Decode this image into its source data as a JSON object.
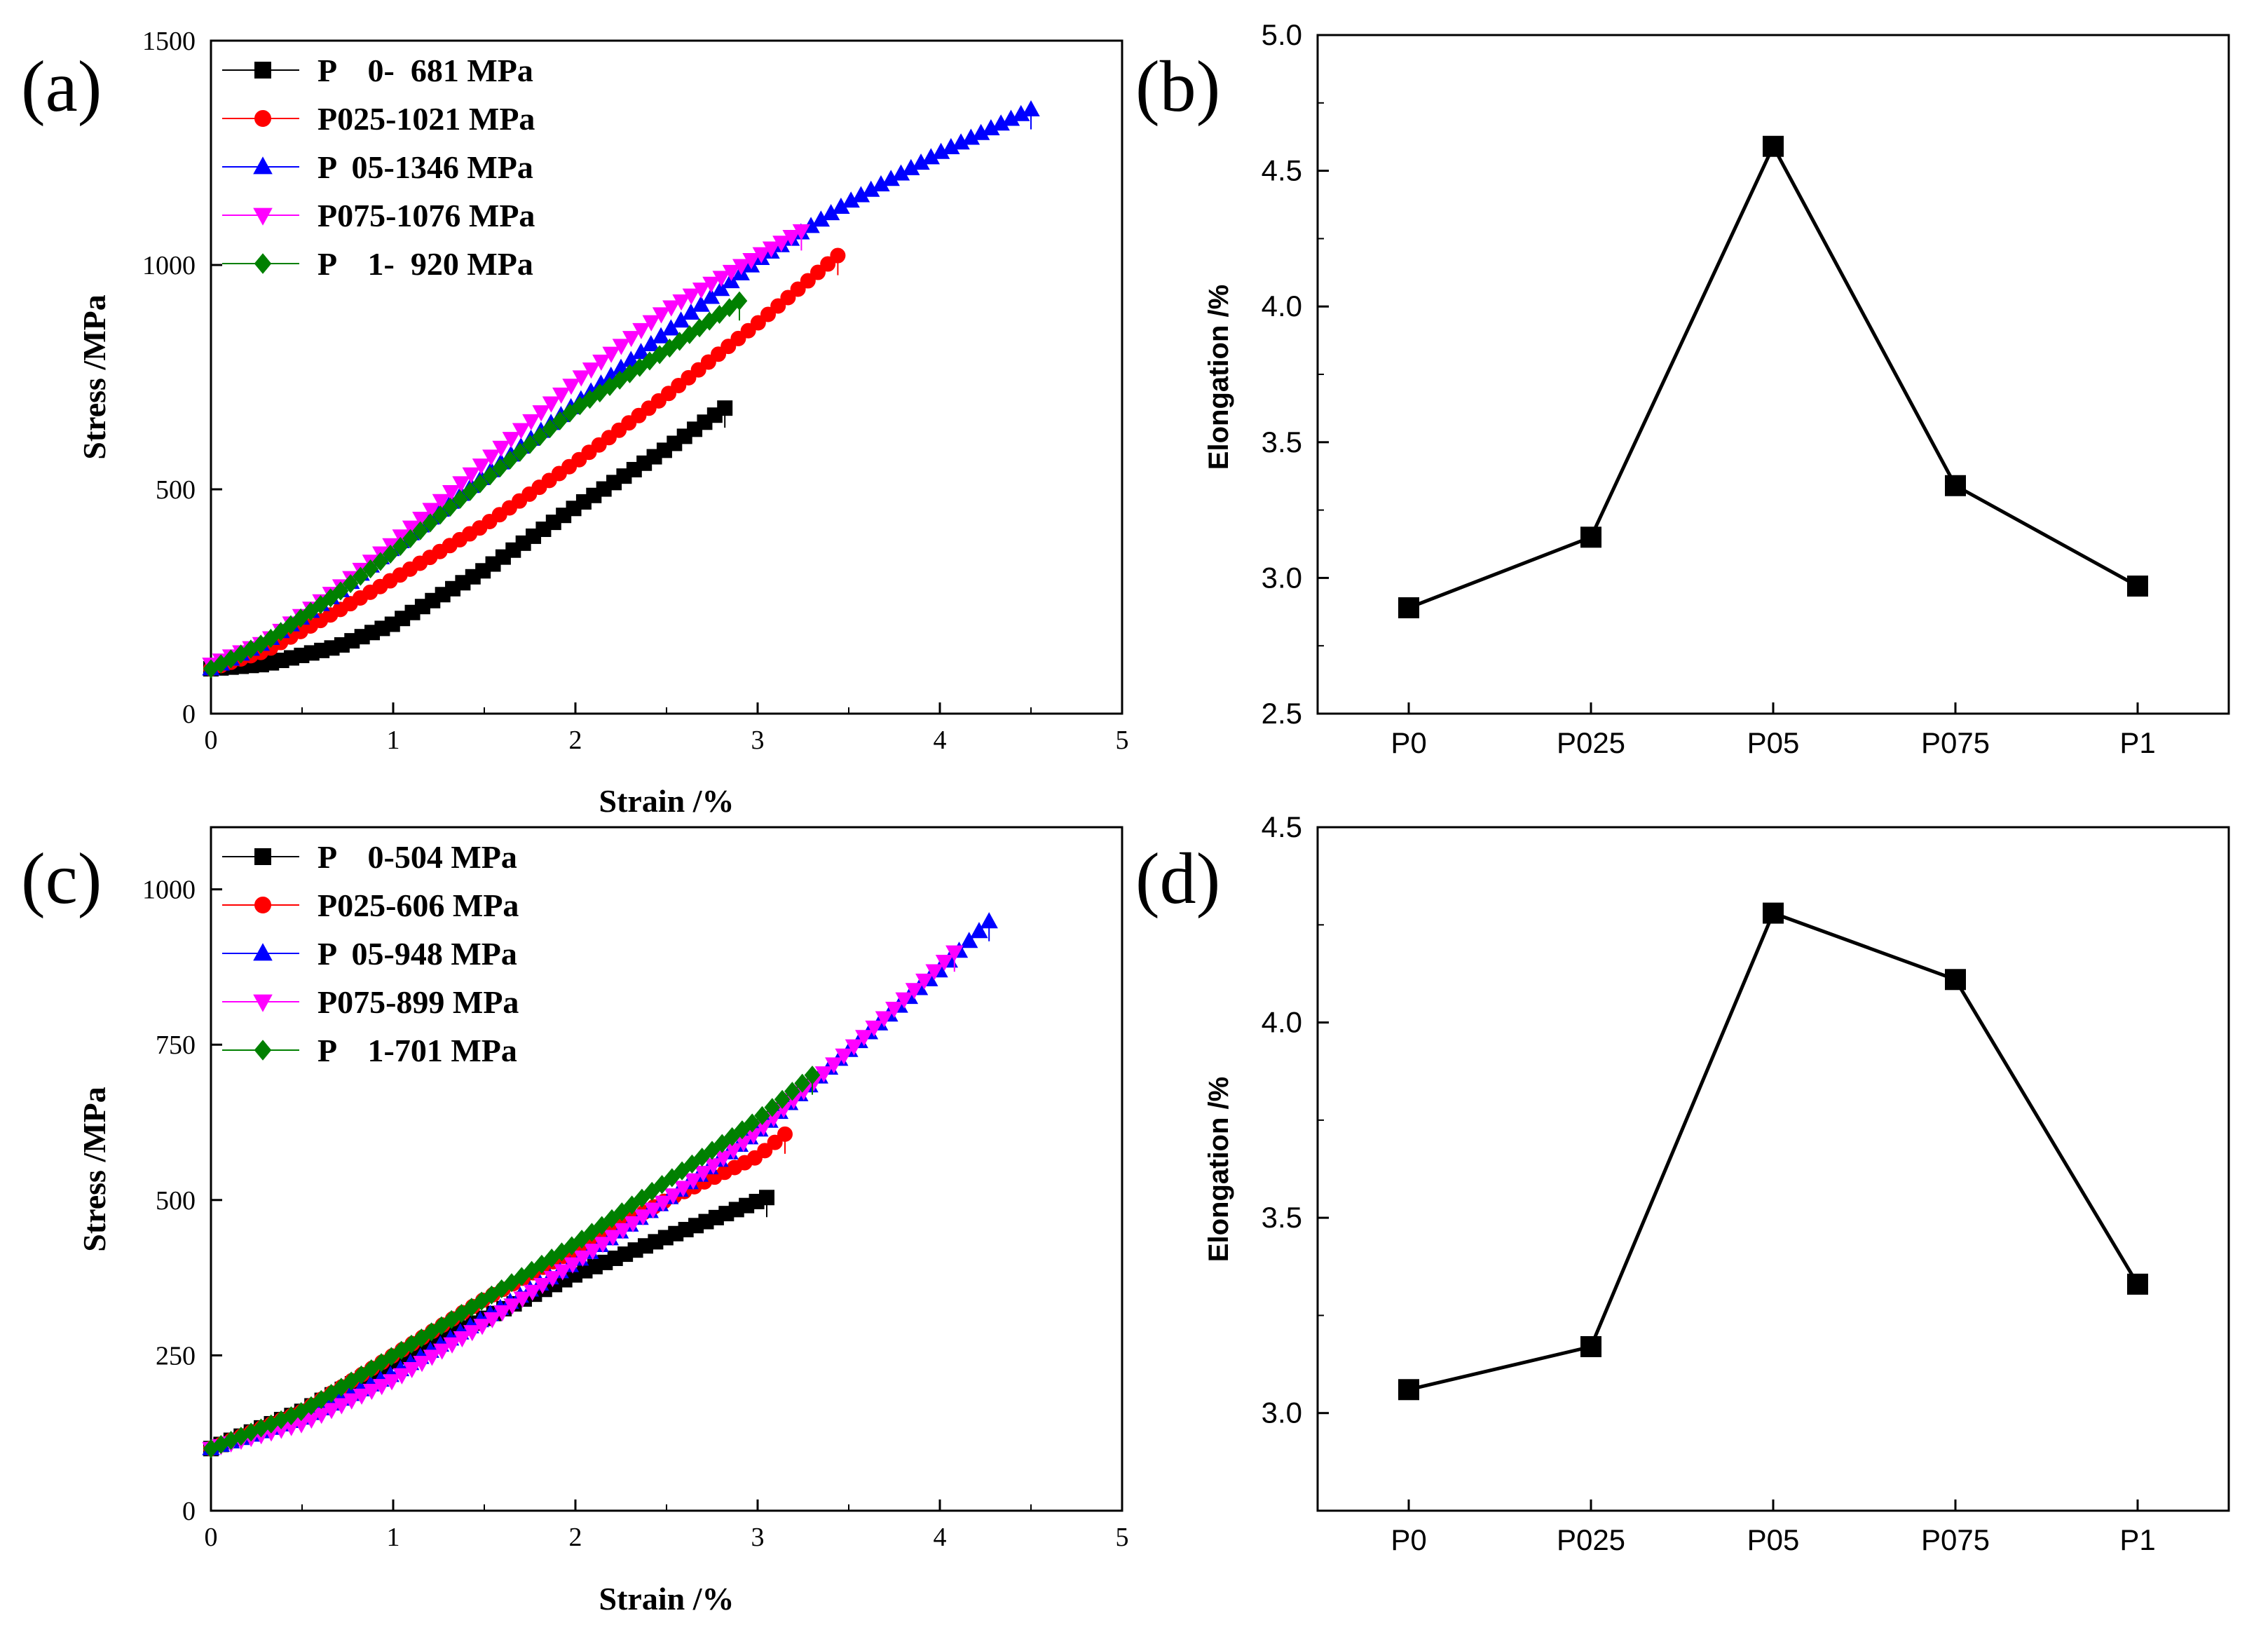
{
  "figure": {
    "colors": {
      "black": "#000000",
      "red": "#ff0000",
      "blue": "#0000ff",
      "magenta": "#ff00ff",
      "green": "#008000"
    }
  },
  "chart_data": [
    {
      "id": "a",
      "panel_label": "(a)",
      "type": "line",
      "xlabel": "Strain /%",
      "ylabel": "Stress /MPa",
      "xlim": [
        0,
        5
      ],
      "ylim": [
        0,
        1500
      ],
      "xticks": [
        "0",
        "1",
        "2",
        "3",
        "4",
        "5"
      ],
      "yticks": [
        "0",
        "500",
        "1000",
        "1500"
      ],
      "legend_position": "top-left",
      "series": [
        {
          "name": "P    0-  681 MPa",
          "color": "#000000",
          "marker": "square",
          "x": [
            0,
            0.3,
            0.7,
            1.0,
            1.5,
            2.0,
            2.5,
            2.82
          ],
          "y": [
            100,
            110,
            150,
            200,
            320,
            460,
            590,
            681
          ]
        },
        {
          "name": "P025-1021 MPa",
          "color": "#ff0000",
          "marker": "circle",
          "x": [
            0,
            0.3,
            0.7,
            1.0,
            1.5,
            2.0,
            2.5,
            3.0,
            3.44
          ],
          "y": [
            100,
            140,
            230,
            300,
            420,
            560,
            710,
            870,
            1021
          ]
        },
        {
          "name": "P  05-1346 MPa",
          "color": "#0000ff",
          "marker": "triangle-up",
          "x": [
            0,
            0.3,
            0.7,
            1.0,
            1.5,
            2.0,
            2.5,
            3.0,
            3.5,
            4.0,
            4.5
          ],
          "y": [
            100,
            160,
            270,
            370,
            530,
            690,
            850,
            1010,
            1140,
            1250,
            1346
          ]
        },
        {
          "name": "P075-1076 MPa",
          "color": "#ff00ff",
          "marker": "triangle-down",
          "x": [
            0,
            0.3,
            0.7,
            1.0,
            1.5,
            2.0,
            2.5,
            3.0,
            3.24
          ],
          "y": [
            110,
            160,
            280,
            380,
            560,
            740,
            900,
            1020,
            1076
          ]
        },
        {
          "name": "P    1-  920 MPa",
          "color": "#008000",
          "marker": "diamond",
          "x": [
            0,
            0.3,
            0.7,
            1.0,
            1.5,
            2.0,
            2.5,
            2.9
          ],
          "y": [
            100,
            160,
            270,
            360,
            520,
            680,
            810,
            920
          ]
        }
      ]
    },
    {
      "id": "b",
      "panel_label": "(b)",
      "type": "line",
      "xlabel": "",
      "ylabel": "Elongation /%",
      "categories": [
        "P0",
        "P025",
        "P05",
        "P075",
        "P1"
      ],
      "values": [
        2.89,
        3.15,
        4.59,
        3.34,
        2.97
      ],
      "ylim": [
        2.5,
        5.0
      ],
      "yticks": [
        "2.5",
        "3.0",
        "3.5",
        "4.0",
        "4.5",
        "5.0"
      ],
      "marker": "square",
      "color": "#000000"
    },
    {
      "id": "c",
      "panel_label": "(c)",
      "type": "line",
      "xlabel": "Strain /%",
      "ylabel": "Stress /MPa",
      "xlim": [
        0,
        5
      ],
      "ylim": [
        0,
        1100
      ],
      "xticks": [
        "0",
        "1",
        "2",
        "3",
        "4",
        "5"
      ],
      "yticks": [
        "0",
        "250",
        "500",
        "750",
        "1000"
      ],
      "legend_position": "top-left",
      "series": [
        {
          "name": "P    0-504 MPa",
          "color": "#000000",
          "marker": "square",
          "x": [
            0,
            0.5,
            1.0,
            1.5,
            2.0,
            2.5,
            3.05
          ],
          "y": [
            100,
            160,
            240,
            310,
            380,
            440,
            504
          ]
        },
        {
          "name": "P025-606 MPa",
          "color": "#ff0000",
          "marker": "circle",
          "x": [
            0,
            0.5,
            1.0,
            1.5,
            2.0,
            2.5,
            3.0,
            3.15
          ],
          "y": [
            100,
            160,
            250,
            340,
            420,
            500,
            570,
            606
          ]
        },
        {
          "name": "P  05-948 MPa",
          "color": "#0000ff",
          "marker": "triangle-up",
          "x": [
            0,
            0.5,
            1.0,
            1.5,
            2.0,
            2.5,
            3.0,
            3.5,
            4.0,
            4.27
          ],
          "y": [
            100,
            150,
            220,
            310,
            400,
            500,
            610,
            740,
            870,
            948
          ]
        },
        {
          "name": "P075-899 MPa",
          "color": "#ff00ff",
          "marker": "triangle-down",
          "x": [
            0,
            0.5,
            1.0,
            1.5,
            2.0,
            2.5,
            3.0,
            3.5,
            4.08
          ],
          "y": [
            100,
            140,
            210,
            300,
            400,
            500,
            610,
            740,
            899
          ]
        },
        {
          "name": "P    1-701 MPa",
          "color": "#008000",
          "marker": "diamond",
          "x": [
            0,
            0.5,
            1.0,
            1.5,
            2.0,
            2.5,
            3.0,
            3.3
          ],
          "y": [
            100,
            160,
            250,
            340,
            430,
            530,
            630,
            701
          ]
        }
      ]
    },
    {
      "id": "d",
      "panel_label": "(d)",
      "type": "line",
      "xlabel": "",
      "ylabel": "Elongation /%",
      "categories": [
        "P0",
        "P025",
        "P05",
        "P075",
        "P1"
      ],
      "values": [
        3.06,
        3.17,
        4.28,
        4.11,
        3.33
      ],
      "ylim": [
        2.75,
        4.5
      ],
      "yticks": [
        "3.0",
        "3.5",
        "4.0",
        "4.5"
      ],
      "marker": "square",
      "color": "#000000"
    }
  ]
}
